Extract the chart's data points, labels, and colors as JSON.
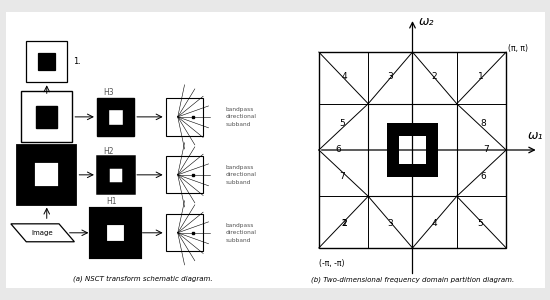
{
  "background": "#e8e8e8",
  "panel_bg": "#ffffff",
  "caption_a": "(a) NSCT transform schematic diagram.",
  "caption_b": "(b) Two-dimensional frequency domain partition diagram.",
  "axis_label_1": "ω₁",
  "axis_label_2": "ω₂",
  "corner_label_pp": "(π, π)",
  "corner_label_nn": "(-π, -π)"
}
